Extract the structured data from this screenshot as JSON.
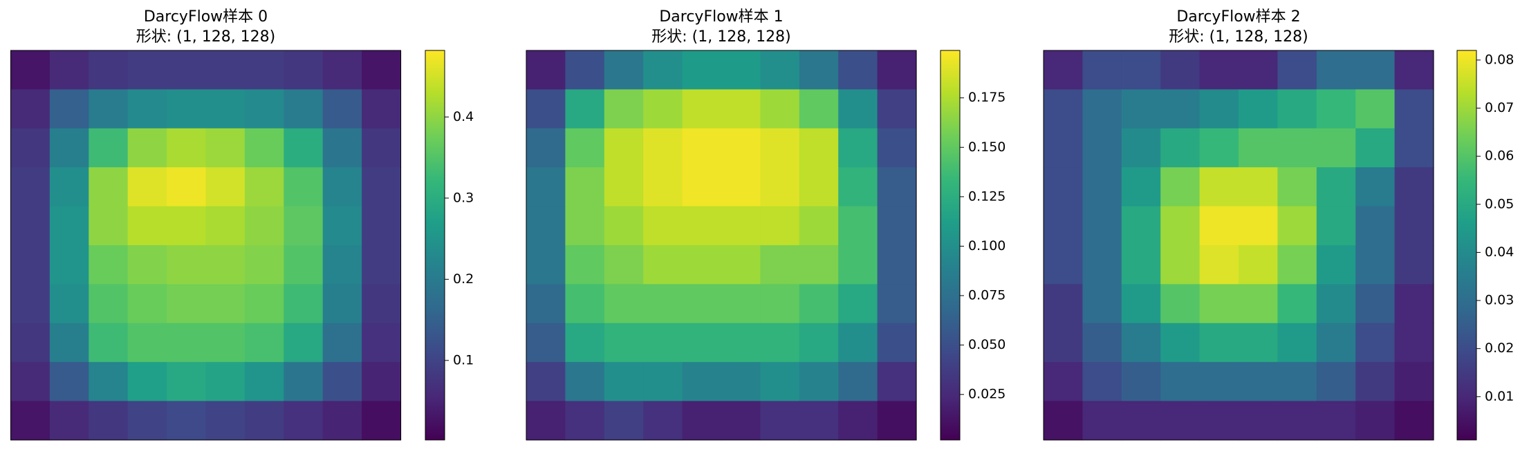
{
  "chart_data": [
    {
      "type": "heatmap",
      "title": "DarcyFlow样本 0",
      "subtitle": "形状: (1, 128, 128)",
      "cmap": "viridis",
      "clim": [
        0.002,
        0.482
      ],
      "cticks": [
        0.1,
        0.2,
        0.3,
        0.4
      ],
      "values": [
        [
          0.03,
          0.06,
          0.08,
          0.09,
          0.09,
          0.09,
          0.09,
          0.08,
          0.06,
          0.03
        ],
        [
          0.06,
          0.15,
          0.2,
          0.23,
          0.24,
          0.24,
          0.23,
          0.2,
          0.14,
          0.06
        ],
        [
          0.08,
          0.21,
          0.33,
          0.4,
          0.42,
          0.41,
          0.37,
          0.3,
          0.19,
          0.08
        ],
        [
          0.09,
          0.24,
          0.4,
          0.46,
          0.47,
          0.45,
          0.41,
          0.35,
          0.22,
          0.09
        ],
        [
          0.09,
          0.25,
          0.4,
          0.43,
          0.43,
          0.42,
          0.4,
          0.36,
          0.23,
          0.09
        ],
        [
          0.09,
          0.25,
          0.37,
          0.39,
          0.4,
          0.4,
          0.39,
          0.35,
          0.22,
          0.09
        ],
        [
          0.09,
          0.24,
          0.35,
          0.37,
          0.38,
          0.38,
          0.37,
          0.33,
          0.21,
          0.08
        ],
        [
          0.08,
          0.21,
          0.33,
          0.35,
          0.35,
          0.35,
          0.34,
          0.29,
          0.18,
          0.07
        ],
        [
          0.06,
          0.14,
          0.22,
          0.27,
          0.29,
          0.28,
          0.25,
          0.19,
          0.12,
          0.05
        ],
        [
          0.03,
          0.06,
          0.08,
          0.1,
          0.11,
          0.1,
          0.09,
          0.07,
          0.05,
          0.02
        ]
      ]
    },
    {
      "type": "heatmap",
      "title": "DarcyFlow样本 1",
      "subtitle": "形状: (1, 128, 128)",
      "cmap": "viridis",
      "clim": [
        0.002,
        0.199
      ],
      "cticks": [
        0.025,
        {
          "value": 0.05,
          "label": "0.050"
        },
        0.075,
        {
          "value": 0.1,
          "label": "0.100"
        },
        0.125,
        {
          "value": 0.15,
          "label": "0.150"
        },
        0.175
      ],
      "values": [
        [
          0.02,
          0.05,
          0.08,
          0.1,
          0.11,
          0.11,
          0.1,
          0.08,
          0.05,
          0.02
        ],
        [
          0.05,
          0.12,
          0.16,
          0.17,
          0.18,
          0.18,
          0.17,
          0.15,
          0.1,
          0.04
        ],
        [
          0.07,
          0.15,
          0.18,
          0.19,
          0.195,
          0.195,
          0.19,
          0.18,
          0.12,
          0.05
        ],
        [
          0.08,
          0.16,
          0.18,
          0.19,
          0.195,
          0.195,
          0.19,
          0.18,
          0.13,
          0.06
        ],
        [
          0.08,
          0.16,
          0.17,
          0.18,
          0.18,
          0.18,
          0.18,
          0.17,
          0.14,
          0.06
        ],
        [
          0.08,
          0.15,
          0.16,
          0.17,
          0.17,
          0.17,
          0.16,
          0.16,
          0.14,
          0.06
        ],
        [
          0.07,
          0.14,
          0.15,
          0.15,
          0.15,
          0.15,
          0.15,
          0.14,
          0.12,
          0.06
        ],
        [
          0.06,
          0.12,
          0.13,
          0.13,
          0.13,
          0.13,
          0.13,
          0.12,
          0.1,
          0.05
        ],
        [
          0.04,
          0.08,
          0.1,
          0.1,
          0.09,
          0.09,
          0.1,
          0.09,
          0.07,
          0.03
        ],
        [
          0.02,
          0.03,
          0.04,
          0.03,
          0.02,
          0.02,
          0.03,
          0.03,
          0.02,
          0.01
        ]
      ]
    },
    {
      "type": "heatmap",
      "title": "DarcyFlow样本 2",
      "subtitle": "形状: (1, 128, 128)",
      "cmap": "viridis",
      "clim": [
        0.001,
        0.082
      ],
      "cticks": [
        0.01,
        0.02,
        0.03,
        0.04,
        0.05,
        0.06,
        0.07,
        0.08
      ],
      "values": [
        [
          0.01,
          0.02,
          0.02,
          0.015,
          0.01,
          0.01,
          0.02,
          0.03,
          0.03,
          0.01
        ],
        [
          0.02,
          0.03,
          0.035,
          0.035,
          0.04,
          0.045,
          0.05,
          0.055,
          0.06,
          0.02
        ],
        [
          0.02,
          0.03,
          0.04,
          0.05,
          0.055,
          0.06,
          0.06,
          0.06,
          0.05,
          0.02
        ],
        [
          0.02,
          0.03,
          0.045,
          0.065,
          0.075,
          0.075,
          0.065,
          0.05,
          0.035,
          0.015
        ],
        [
          0.02,
          0.03,
          0.05,
          0.07,
          0.08,
          0.08,
          0.07,
          0.05,
          0.03,
          0.015
        ],
        [
          0.02,
          0.03,
          0.05,
          0.07,
          0.078,
          0.075,
          0.065,
          0.045,
          0.03,
          0.015
        ],
        [
          0.015,
          0.03,
          0.045,
          0.06,
          0.065,
          0.065,
          0.055,
          0.04,
          0.025,
          0.01
        ],
        [
          0.015,
          0.025,
          0.035,
          0.045,
          0.05,
          0.05,
          0.045,
          0.035,
          0.02,
          0.01
        ],
        [
          0.01,
          0.02,
          0.025,
          0.03,
          0.03,
          0.03,
          0.03,
          0.025,
          0.015,
          0.008
        ],
        [
          0.005,
          0.01,
          0.01,
          0.01,
          0.01,
          0.01,
          0.01,
          0.01,
          0.008,
          0.004
        ]
      ]
    }
  ]
}
